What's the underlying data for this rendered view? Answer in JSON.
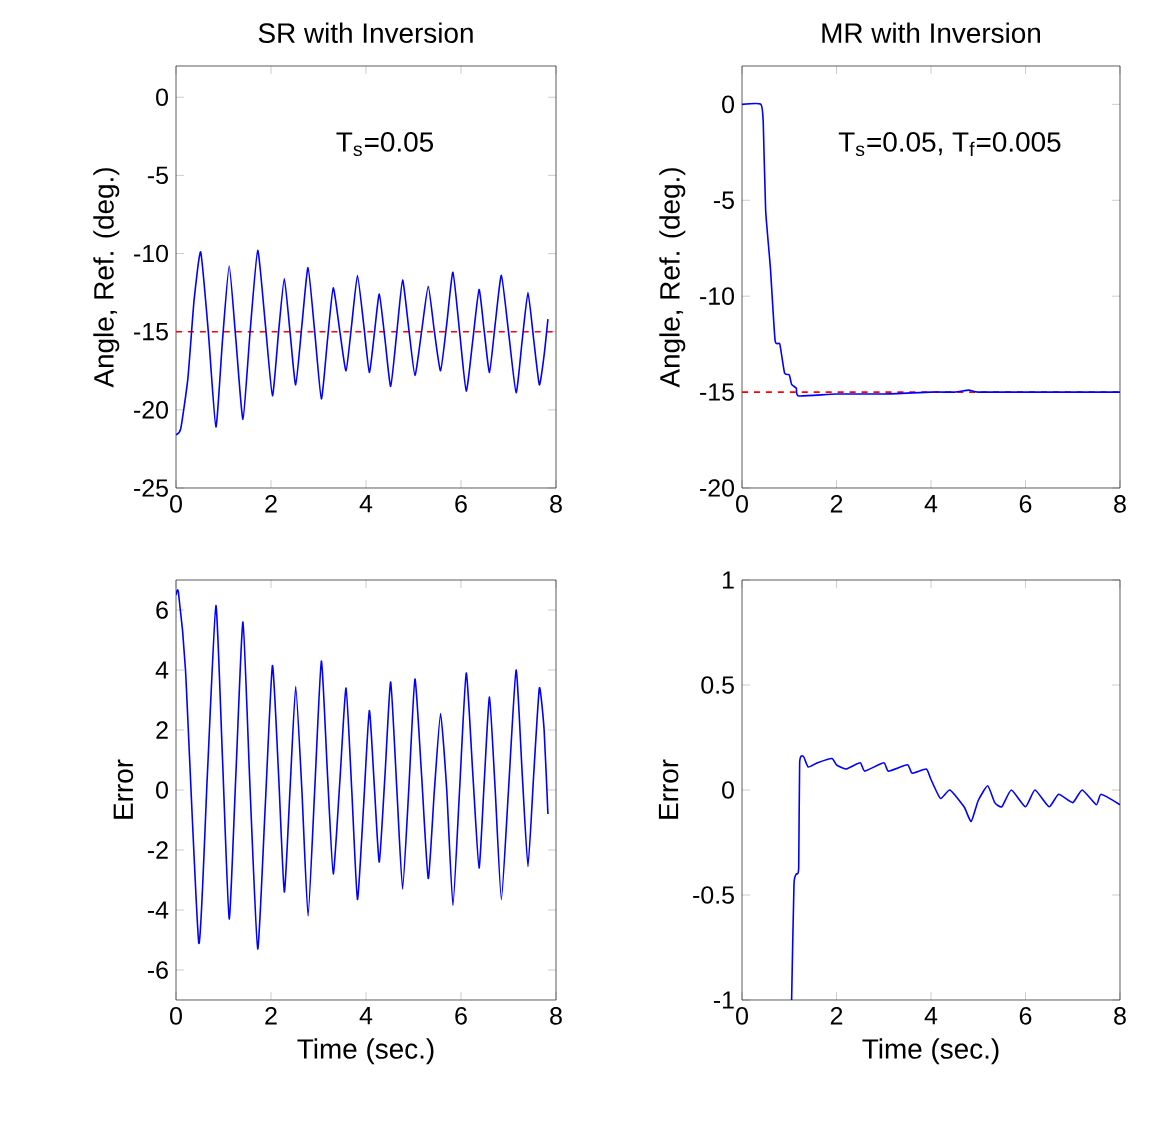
{
  "chart_data": [
    {
      "type": "line",
      "title": "SR with Inversion",
      "ylabel": "Angle, Ref. (deg.)",
      "annotations": [
        "T$_{s}$=0.05"
      ],
      "xlim": [
        0,
        8
      ],
      "ylim": [
        -25,
        2
      ],
      "xticks": [
        0,
        2,
        4,
        6,
        8
      ],
      "yticks": [
        -25,
        -20,
        -15,
        -10,
        -5,
        0
      ],
      "grid": false,
      "ref_lines": [
        {
          "axis": "y",
          "value": -15,
          "color": "#ff0000",
          "line_style": "dashed"
        }
      ],
      "series": [
        {
          "color": "#0000ff",
          "line_style": "solid",
          "x": [
            0,
            0.1,
            0.25,
            0.38,
            0.52,
            0.68,
            0.84,
            0.98,
            1.12,
            1.26,
            1.41,
            1.56,
            1.72,
            1.88,
            2.03,
            2.16,
            2.28,
            2.4,
            2.52,
            2.65,
            2.78,
            2.92,
            3.06,
            3.19,
            3.31,
            3.45,
            3.58,
            3.7,
            3.82,
            3.95,
            4.07,
            4.18,
            4.28,
            4.4,
            4.52,
            4.65,
            4.77,
            4.9,
            5.03,
            5.17,
            5.31,
            5.44,
            5.57,
            5.7,
            5.83,
            5.97,
            6.11,
            6.25,
            6.38,
            6.49,
            6.6,
            6.72,
            6.85,
            7.0,
            7.16,
            7.29,
            7.41,
            7.53,
            7.65,
            7.75,
            7.83
          ],
          "values": [
            -21.6,
            -21.2,
            -18,
            -13,
            -9.9,
            -15,
            -21.1,
            -15.5,
            -10.8,
            -15.5,
            -20.6,
            -15,
            -9.8,
            -14.5,
            -19.1,
            -15,
            -11.6,
            -15,
            -18.4,
            -14.6,
            -10.9,
            -15,
            -19.3,
            -15.5,
            -12.2,
            -15,
            -17.5,
            -14.5,
            -11.4,
            -14.5,
            -17.6,
            -15,
            -12.6,
            -15.5,
            -18.5,
            -15,
            -11.7,
            -14.8,
            -17.8,
            -15,
            -12.1,
            -15,
            -17.5,
            -14.5,
            -11.2,
            -15,
            -18.8,
            -15.5,
            -12.3,
            -15,
            -17.6,
            -14.5,
            -11.4,
            -15,
            -18.9,
            -15.5,
            -12.5,
            -15.5,
            -18.4,
            -16.5,
            -14.2
          ]
        }
      ]
    },
    {
      "type": "line",
      "title": "MR with Inversion",
      "ylabel": "Angle, Ref. (deg.)",
      "annotations": [
        "T$_{s}$=0.05, T$_{f}$=0.005"
      ],
      "xlim": [
        0,
        8
      ],
      "ylim": [
        -20,
        2
      ],
      "xticks": [
        0,
        2,
        4,
        6,
        8
      ],
      "yticks": [
        -20,
        -15,
        -10,
        -5,
        0
      ],
      "grid": false,
      "ref_lines": [
        {
          "axis": "y",
          "value": -15,
          "color": "#ff0000",
          "line_style": "dashed"
        }
      ],
      "series": [
        {
          "color": "#0000ff",
          "line_style": "solid",
          "x": [
            0,
            0.4,
            0.45,
            0.5,
            0.6,
            0.7,
            0.8,
            0.9,
            1.0,
            1.05,
            1.15,
            1.2,
            2,
            3,
            4,
            4.5,
            4.8,
            5,
            6,
            7,
            8
          ],
          "values": [
            0,
            0,
            -1,
            -5.5,
            -8.5,
            -12.3,
            -12.5,
            -14,
            -14.1,
            -14.6,
            -14.8,
            -15.2,
            -15.1,
            -15.1,
            -15,
            -15,
            -14.9,
            -15,
            -15,
            -15,
            -15
          ]
        }
      ]
    },
    {
      "type": "line",
      "xlabel": "Time (sec.)",
      "ylabel": "Error",
      "xlim": [
        0,
        8
      ],
      "ylim": [
        -7,
        7
      ],
      "xticks": [
        0,
        2,
        4,
        6,
        8
      ],
      "yticks": [
        -6,
        -4,
        -2,
        0,
        2,
        4,
        6
      ],
      "grid": false,
      "series": [
        {
          "color": "#0000ff",
          "line_style": "solid",
          "x": [
            0,
            0.05,
            0.2,
            0.48,
            0.66,
            0.84,
            0.98,
            1.12,
            1.26,
            1.41,
            1.56,
            1.72,
            1.88,
            2.03,
            2.16,
            2.28,
            2.4,
            2.52,
            2.65,
            2.78,
            2.92,
            3.06,
            3.19,
            3.31,
            3.45,
            3.58,
            3.7,
            3.82,
            3.95,
            4.07,
            4.18,
            4.28,
            4.4,
            4.52,
            4.65,
            4.77,
            4.9,
            5.03,
            5.17,
            5.31,
            5.44,
            5.57,
            5.7,
            5.83,
            5.97,
            6.11,
            6.25,
            6.38,
            6.49,
            6.6,
            6.72,
            6.85,
            7.0,
            7.16,
            7.29,
            7.41,
            7.53,
            7.65,
            7.75,
            7.83
          ],
          "values": [
            6.5,
            6.6,
            4,
            -5.1,
            0.5,
            6.15,
            1,
            -4.3,
            0.5,
            5.6,
            0,
            -5.3,
            -0.5,
            4.15,
            0.5,
            -3.4,
            0,
            3.45,
            0,
            -4.2,
            0,
            4.3,
            0.5,
            -2.8,
            0.3,
            3.4,
            0,
            -3.65,
            -0.5,
            2.65,
            0,
            -2.4,
            0.5,
            3.6,
            0,
            -3.3,
            0,
            3.7,
            0.5,
            -2.95,
            0,
            2.55,
            0,
            -3.85,
            0,
            3.9,
            0.5,
            -2.6,
            0.3,
            3.1,
            0,
            -3.65,
            0,
            4.0,
            0.5,
            -2.55,
            0.5,
            3.4,
            2,
            -0.8
          ]
        }
      ]
    },
    {
      "type": "line",
      "xlabel": "Time (sec.)",
      "ylabel": "Error",
      "xlim": [
        0,
        8
      ],
      "ylim": [
        -1,
        1
      ],
      "xticks": [
        0,
        2,
        4,
        6,
        8
      ],
      "yticks": [
        -1,
        -0.5,
        0,
        0.5,
        1
      ],
      "grid": false,
      "series": [
        {
          "color": "#0000ff",
          "line_style": "solid",
          "x": [
            1.05,
            1.1,
            1.15,
            1.2,
            1.22,
            1.3,
            1.4,
            1.6,
            1.9,
            2.0,
            2.2,
            2.5,
            2.6,
            3.0,
            3.1,
            3.5,
            3.6,
            3.9,
            4.0,
            4.2,
            4.4,
            4.7,
            4.85,
            5.0,
            5.2,
            5.35,
            5.5,
            5.7,
            6.0,
            6.2,
            6.5,
            6.7,
            7.0,
            7.2,
            7.5,
            7.6,
            8.0
          ],
          "values": [
            -1,
            -0.45,
            -0.4,
            -0.37,
            0.13,
            0.16,
            0.11,
            0.13,
            0.15,
            0.12,
            0.1,
            0.13,
            0.09,
            0.13,
            0.09,
            0.12,
            0.08,
            0.1,
            0.05,
            -0.04,
            0.0,
            -0.08,
            -0.15,
            -0.05,
            0.02,
            -0.06,
            -0.08,
            0.0,
            -0.08,
            0.0,
            -0.08,
            -0.02,
            -0.06,
            0.0,
            -0.07,
            -0.02,
            -0.07
          ]
        }
      ]
    }
  ]
}
